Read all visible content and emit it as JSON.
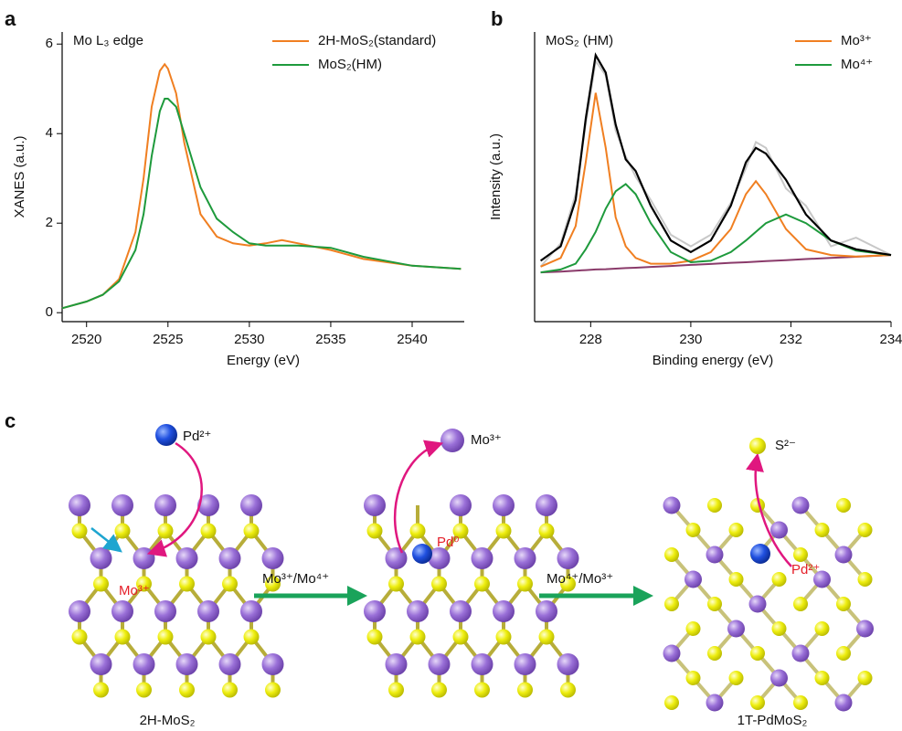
{
  "panel_labels": [
    "a",
    "b",
    "c"
  ],
  "chart_data": [
    {
      "type": "line",
      "annotation": "Mo L₃ edge",
      "x_label": "Energy (eV)",
      "y_label": "XANES (a.u.)",
      "x": [
        2518.5,
        2520,
        2521,
        2522,
        2523,
        2523.5,
        2524,
        2524.5,
        2524.8,
        2525,
        2525.5,
        2526,
        2527,
        2528,
        2529,
        2530,
        2531,
        2532,
        2533,
        2535,
        2537,
        2540,
        2543
      ],
      "series": [
        {
          "name": "2H-MoS₂(standard)",
          "color": "#f07f21",
          "values": [
            0.1,
            0.25,
            0.4,
            0.75,
            1.8,
            3.0,
            4.6,
            5.4,
            5.55,
            5.45,
            4.9,
            3.8,
            2.2,
            1.7,
            1.55,
            1.5,
            1.55,
            1.62,
            1.55,
            1.4,
            1.2,
            1.05,
            0.98
          ]
        },
        {
          "name": "MoS₂(HM)",
          "color": "#1e9a3c",
          "values": [
            0.1,
            0.25,
            0.4,
            0.7,
            1.4,
            2.2,
            3.5,
            4.5,
            4.78,
            4.78,
            4.6,
            4.0,
            2.8,
            2.1,
            1.8,
            1.55,
            1.5,
            1.5,
            1.5,
            1.45,
            1.25,
            1.05,
            0.98
          ]
        }
      ],
      "xlim": [
        2518.5,
        2543.2
      ],
      "ylim": [
        -0.2,
        6.27
      ],
      "xticks": [
        2520,
        2525,
        2530,
        2535,
        2540
      ],
      "yticks": [
        0,
        2,
        4,
        6
      ],
      "legend": "upper right"
    },
    {
      "type": "line",
      "annotation": "MoS₂ (HM)",
      "x_label": "Binding energy (eV)",
      "y_label": "Intensity (a.u.)",
      "x": [
        227,
        227.4,
        227.7,
        227.9,
        228.1,
        228.3,
        228.5,
        228.7,
        228.9,
        229.2,
        229.6,
        230,
        230.4,
        230.8,
        231.1,
        231.3,
        231.5,
        231.9,
        232.3,
        232.8,
        233.3,
        234
      ],
      "series": [
        {
          "color": "#c8c8c8",
          "values": [
            19,
            27,
            44,
            68,
            90,
            85,
            66,
            57,
            50,
            42,
            30,
            26,
            30,
            41,
            53,
            62,
            60,
            46,
            40,
            26,
            29,
            23
          ]
        },
        {
          "color": "#8a3a6a",
          "values": [
            17,
            17.3,
            17.6,
            17.8,
            18,
            18.1,
            18.3,
            18.5,
            18.6,
            18.9,
            19.2,
            19.6,
            19.9,
            20.3,
            20.5,
            20.7,
            20.9,
            21.2,
            21.6,
            22,
            22.4,
            23
          ]
        },
        {
          "name": "Mo³⁺",
          "color": "#f07f21",
          "values": [
            19,
            22,
            33,
            55,
            79,
            60,
            36,
            26,
            22,
            20,
            20,
            21,
            24,
            32,
            44,
            48.5,
            44,
            32,
            25,
            23,
            22.5,
            23
          ]
        },
        {
          "name": "Mo⁴⁺",
          "color": "#1e9a3c",
          "values": [
            17,
            18,
            20,
            25,
            31,
            39,
            45,
            47.5,
            44,
            34,
            24,
            20.5,
            21,
            24,
            28,
            31,
            34,
            37,
            34,
            28,
            24.5,
            23
          ]
        },
        {
          "color": "#000000",
          "values": [
            21,
            26,
            42,
            70,
            92,
            86,
            68,
            56,
            52,
            40,
            28,
            24,
            28,
            40,
            55,
            60,
            58,
            49,
            37,
            28,
            25,
            23
          ]
        }
      ],
      "xlim": [
        226.88,
        234
      ],
      "ylim": [
        0,
        100
      ],
      "xticks": [
        228,
        230,
        232,
        234
      ],
      "legend": "upper right"
    }
  ],
  "diagram": {
    "pd_in": "Pd²⁺",
    "mo_site": "Mo³⁺",
    "mo_out": "Mo³⁺",
    "pd0": "Pd⁰",
    "s_out": "S²⁻",
    "pd_site": "Pd²⁺",
    "step1": "Mo³⁺/Mo⁴⁺",
    "step2": "Mo⁴⁺/Mo³⁺",
    "caption_left": "2H-MoS₂",
    "caption_right": "1T-PdMoS₂"
  }
}
